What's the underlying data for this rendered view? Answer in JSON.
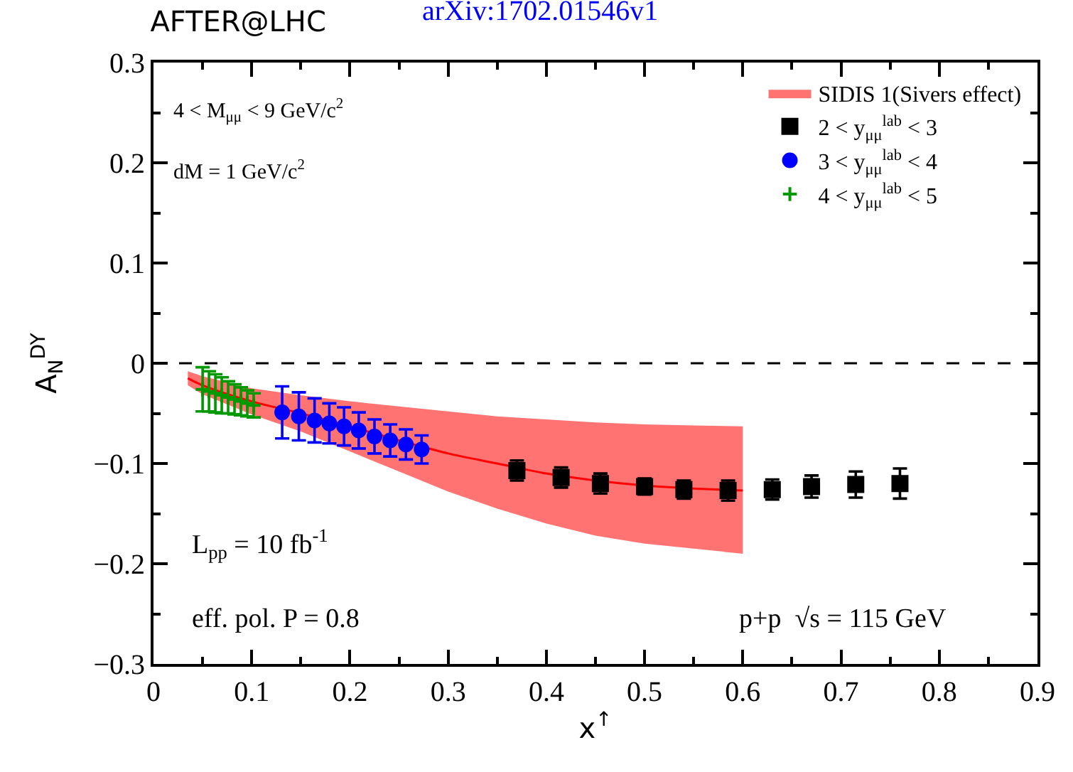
{
  "chart_data": {
    "type": "scatter",
    "title": "AFTER@LHC",
    "xlabel": "x$^{↑}$",
    "ylabel": "A$_{N}$$^{DY}$",
    "annotations": [
      "arXiv:1702.01546v1",
      "4 < M$_{μμ}$ < 9 GeV/c$^{2}$",
      "dM = 1 GeV/c$^{2}$",
      "L$_{pp}$ = 10 fb$^{-1}$",
      "eff. pol. P = 0.8",
      "p+p  √s = 115 GeV"
    ],
    "series": [
      {
        "name": "SIDIS 1(Sivers effect)",
        "type": "line",
        "color": "#ff0000",
        "x": [
          0.035,
          0.05,
          0.1,
          0.15,
          0.2,
          0.25,
          0.3,
          0.35,
          0.4,
          0.45,
          0.5,
          0.55,
          0.6
        ],
        "values": [
          -0.015,
          -0.022,
          -0.038,
          -0.05,
          -0.063,
          -0.077,
          -0.09,
          -0.1,
          -0.11,
          -0.117,
          -0.122,
          -0.125,
          -0.127
        ],
        "upper": [
          -0.008,
          -0.013,
          -0.025,
          -0.032,
          -0.038,
          -0.043,
          -0.048,
          -0.053,
          -0.056,
          -0.059,
          -0.061,
          -0.062,
          -0.063
        ],
        "lower": [
          -0.022,
          -0.031,
          -0.051,
          -0.068,
          -0.088,
          -0.108,
          -0.128,
          -0.145,
          -0.16,
          -0.172,
          -0.18,
          -0.185,
          -0.19
        ]
      },
      {
        "name": "2 < y$_{μμ}$$^{lab}$ < 3",
        "color": "#000000",
        "marker": "square",
        "x": [
          0.37,
          0.415,
          0.455,
          0.5,
          0.54,
          0.585,
          0.63,
          0.67,
          0.715,
          0.76
        ],
        "values": [
          -0.107,
          -0.114,
          -0.12,
          -0.123,
          -0.126,
          -0.127,
          -0.126,
          -0.123,
          -0.121,
          -0.12
        ],
        "errors": [
          0.01,
          0.01,
          0.01,
          0.008,
          0.009,
          0.01,
          0.01,
          0.011,
          0.013,
          0.015
        ]
      },
      {
        "name": "3 < y$_{μμ}$$^{lab}$ < 4",
        "color": "#0000ff",
        "marker": "circle",
        "x": [
          0.131,
          0.148,
          0.164,
          0.179,
          0.194,
          0.209,
          0.225,
          0.241,
          0.257,
          0.273
        ],
        "values": [
          -0.049,
          -0.053,
          -0.057,
          -0.06,
          -0.063,
          -0.067,
          -0.073,
          -0.077,
          -0.081,
          -0.086
        ],
        "errors": [
          0.026,
          0.024,
          0.022,
          0.02,
          0.019,
          0.018,
          0.017,
          0.016,
          0.015,
          0.014
        ]
      },
      {
        "name": "4 < y$_{μμ}$$^{lab}$ < 5",
        "color": "#009900",
        "marker": "cross",
        "x": [
          0.05,
          0.0565,
          0.063,
          0.0695,
          0.076,
          0.0825,
          0.089,
          0.0955,
          0.102
        ],
        "values": [
          -0.026,
          -0.028,
          -0.03,
          -0.032,
          -0.034,
          -0.036,
          -0.038,
          -0.04,
          -0.042
        ],
        "errors": [
          0.022,
          0.02,
          0.019,
          0.018,
          0.016,
          0.015,
          0.014,
          0.013,
          0.012
        ]
      }
    ],
    "xlim": [
      0,
      0.9
    ],
    "xticks": [
      0,
      0.1,
      0.2,
      0.3,
      0.4,
      0.5,
      0.6,
      0.7,
      0.8,
      0.9
    ],
    "ylim": [
      -0.3,
      0.3
    ],
    "yticks": [
      {
        "value": -0.3,
        "label": "−0.3"
      },
      {
        "value": -0.2,
        "label": "−0.2"
      },
      {
        "value": -0.1,
        "label": "−0.1"
      },
      0,
      0.1,
      0.2,
      0.3
    ],
    "ref_lines": [
      {
        "axis": "y",
        "value": 0,
        "line_style": "dashed",
        "color": "#000000"
      }
    ],
    "grid": false,
    "legend": "top right"
  }
}
